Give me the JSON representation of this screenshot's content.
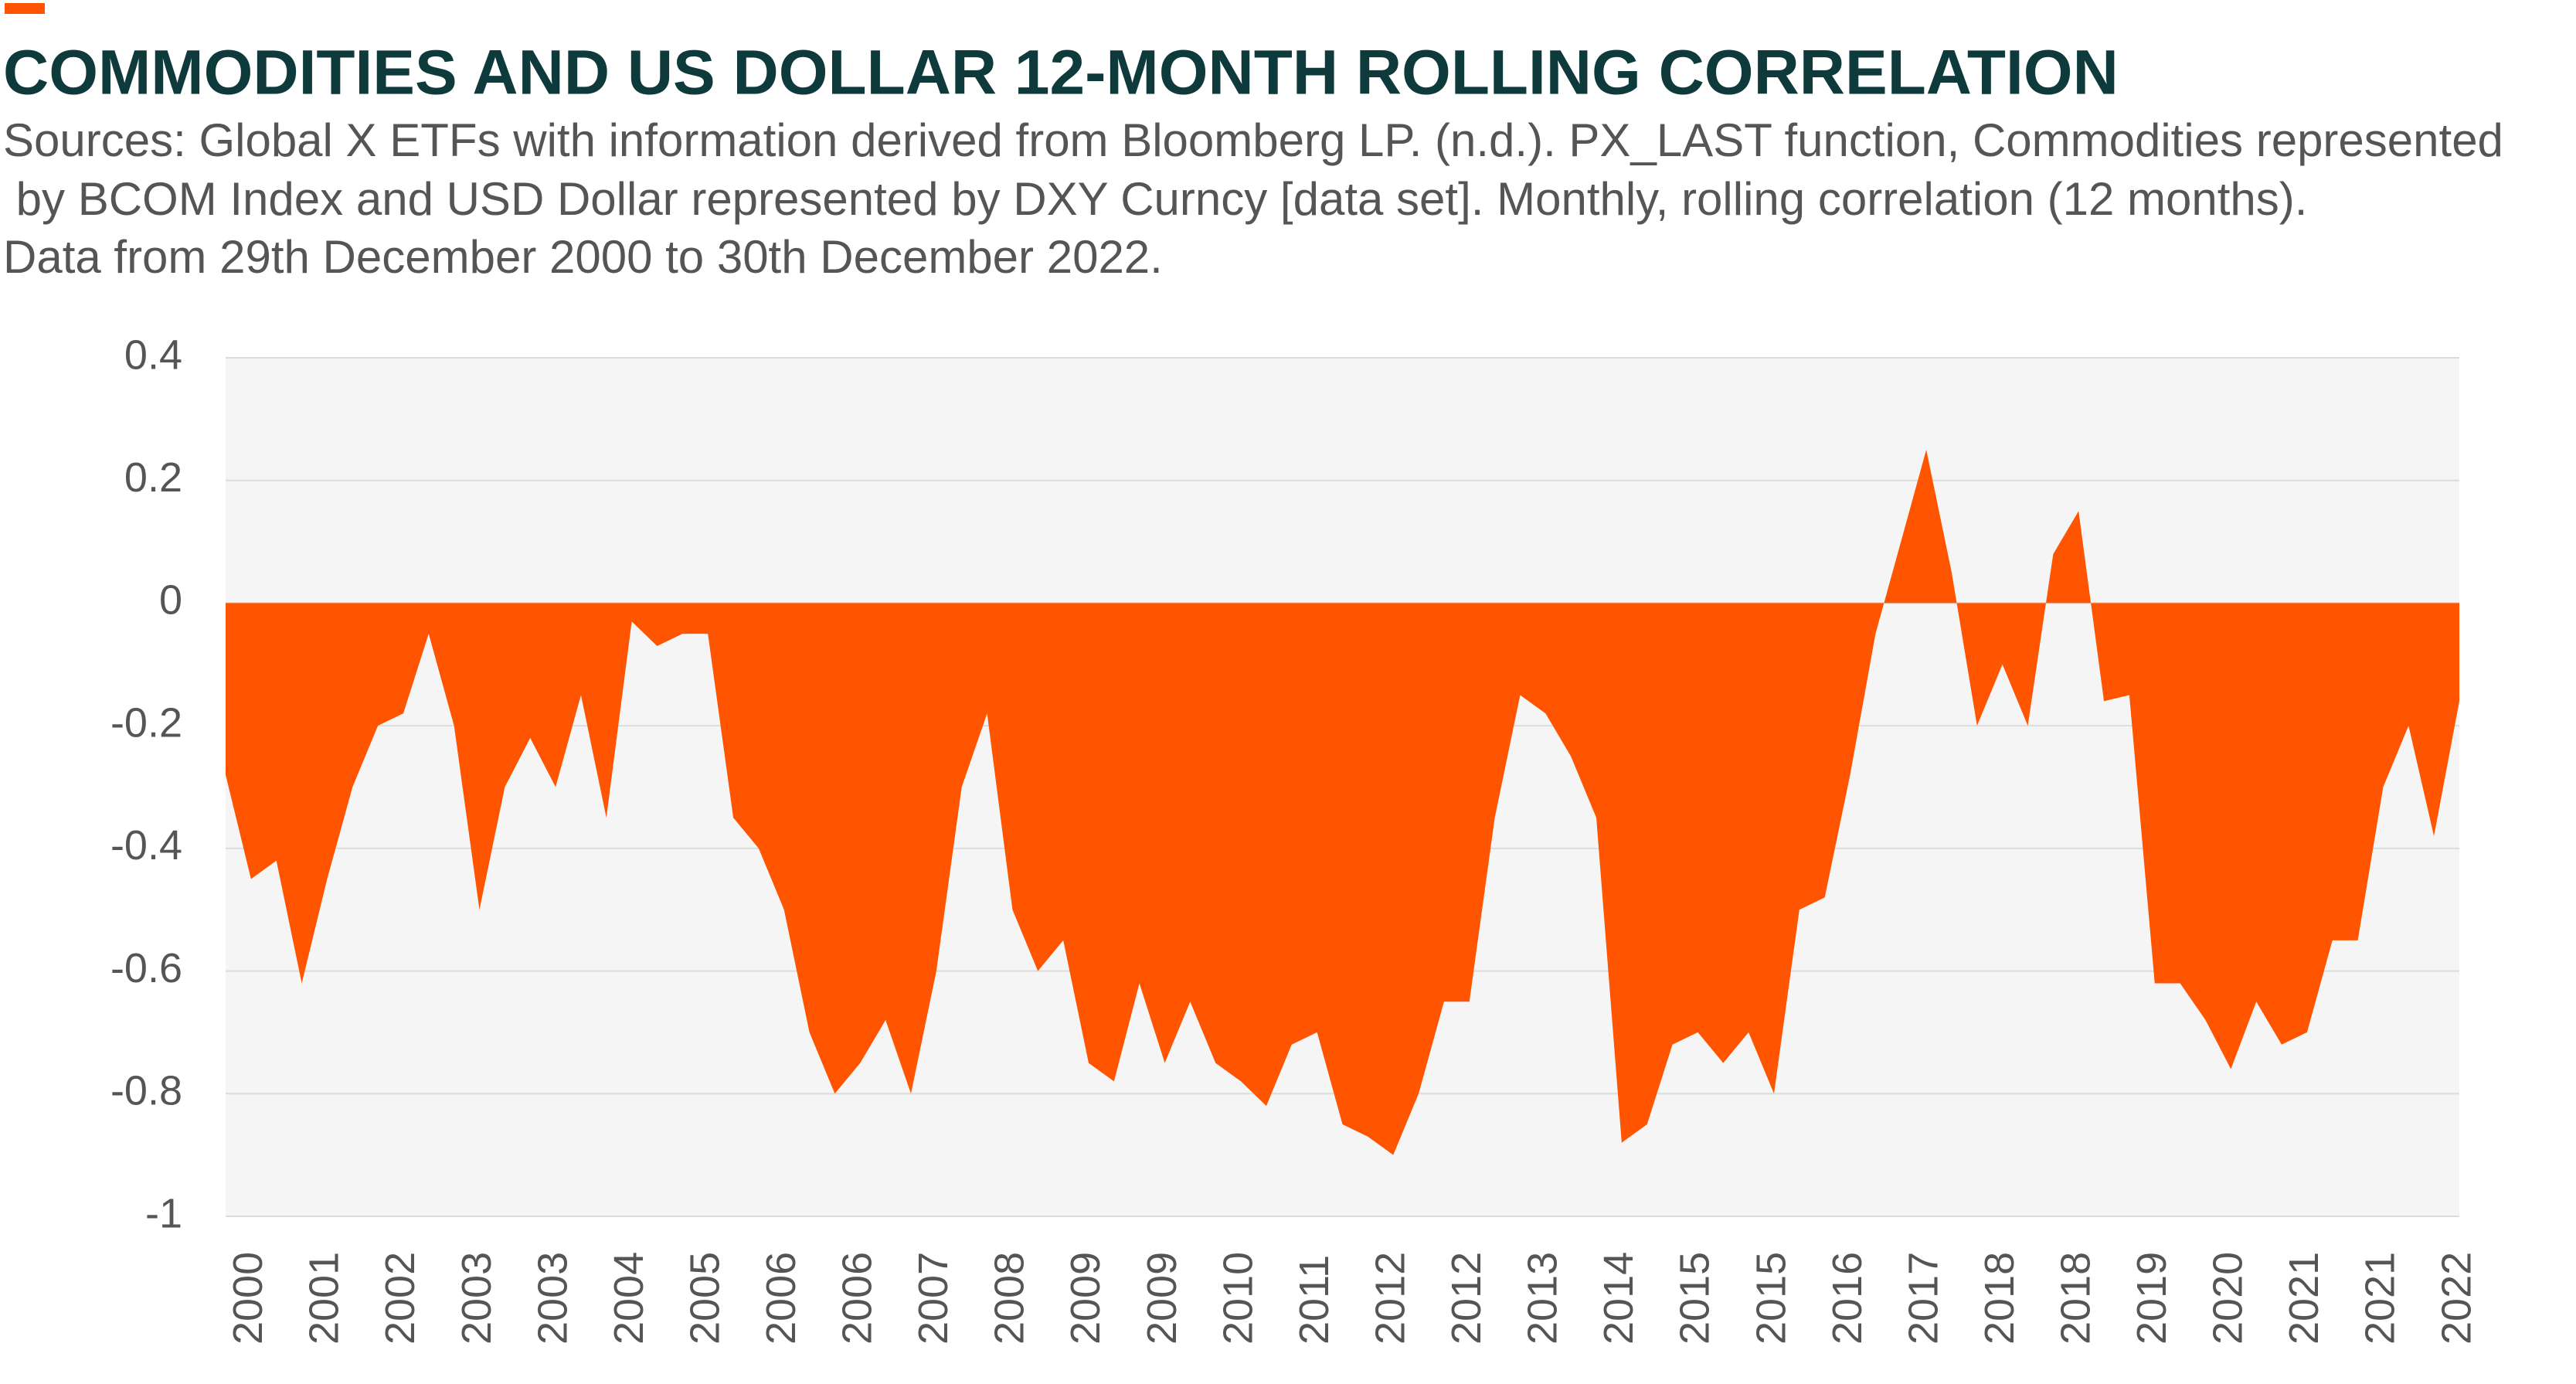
{
  "chart_data": {
    "type": "area",
    "title": "COMMODITIES AND US DOLLAR 12-MONTH ROLLING CORRELATION",
    "subtitle": [
      "Sources: Global X ETFs with information derived from Bloomberg LP. (n.d.). PX_LAST function, Commodities represented",
      " by BCOM Index and USD Dollar represented by DXY Curncy [data set]. Monthly, rolling correlation (12 months).",
      "Data from 29th December 2000 to 30th December 2022."
    ],
    "categories": [
      null,
      "2000",
      null,
      null,
      "2001",
      null,
      null,
      "2002",
      null,
      null,
      "2003",
      null,
      null,
      "2003",
      null,
      null,
      "2004",
      null,
      null,
      "2005",
      null,
      null,
      "2006",
      null,
      null,
      "2006",
      null,
      null,
      "2007",
      null,
      null,
      "2008",
      null,
      null,
      "2009",
      null,
      null,
      "2009",
      null,
      null,
      "2010",
      null,
      null,
      "2011",
      null,
      null,
      "2012",
      null,
      null,
      "2012",
      null,
      null,
      "2013",
      null,
      null,
      "2014",
      null,
      null,
      "2015",
      null,
      null,
      "2015",
      null,
      null,
      "2016",
      null,
      null,
      "2017",
      null,
      null,
      "2018",
      null,
      null,
      "2018",
      null,
      null,
      "2019",
      null,
      null,
      "2020",
      null,
      null,
      "2021",
      null,
      null,
      "2021",
      null,
      null,
      "2022"
    ],
    "values": [
      -0.28,
      -0.45,
      -0.42,
      -0.62,
      -0.45,
      -0.3,
      -0.2,
      -0.18,
      -0.05,
      -0.2,
      -0.5,
      -0.3,
      -0.22,
      -0.3,
      -0.15,
      -0.35,
      -0.03,
      -0.07,
      -0.05,
      -0.05,
      -0.35,
      -0.4,
      -0.5,
      -0.7,
      -0.8,
      -0.75,
      -0.68,
      -0.8,
      -0.6,
      -0.3,
      -0.18,
      -0.5,
      -0.6,
      -0.55,
      -0.75,
      -0.78,
      -0.62,
      -0.75,
      -0.65,
      -0.75,
      -0.78,
      -0.82,
      -0.72,
      -0.7,
      -0.85,
      -0.87,
      -0.9,
      -0.8,
      -0.65,
      -0.65,
      -0.35,
      -0.15,
      -0.18,
      -0.25,
      -0.35,
      -0.88,
      -0.85,
      -0.72,
      -0.7,
      -0.75,
      -0.7,
      -0.8,
      -0.5,
      -0.48,
      -0.28,
      -0.05,
      0.1,
      0.25,
      0.05,
      -0.2,
      -0.1,
      -0.2,
      0.08,
      0.15,
      -0.16,
      -0.15,
      -0.62,
      -0.62,
      -0.68,
      -0.76,
      -0.65,
      -0.72,
      -0.7,
      -0.55,
      -0.55,
      -0.3,
      -0.2,
      -0.38,
      -0.16
    ],
    "color": "#ff5500",
    "ylim": [
      -1,
      0.4
    ],
    "yticks": [
      0.4,
      0.2,
      0,
      -0.2,
      -0.4,
      -0.6,
      -0.8,
      -1
    ],
    "grid": true
  }
}
